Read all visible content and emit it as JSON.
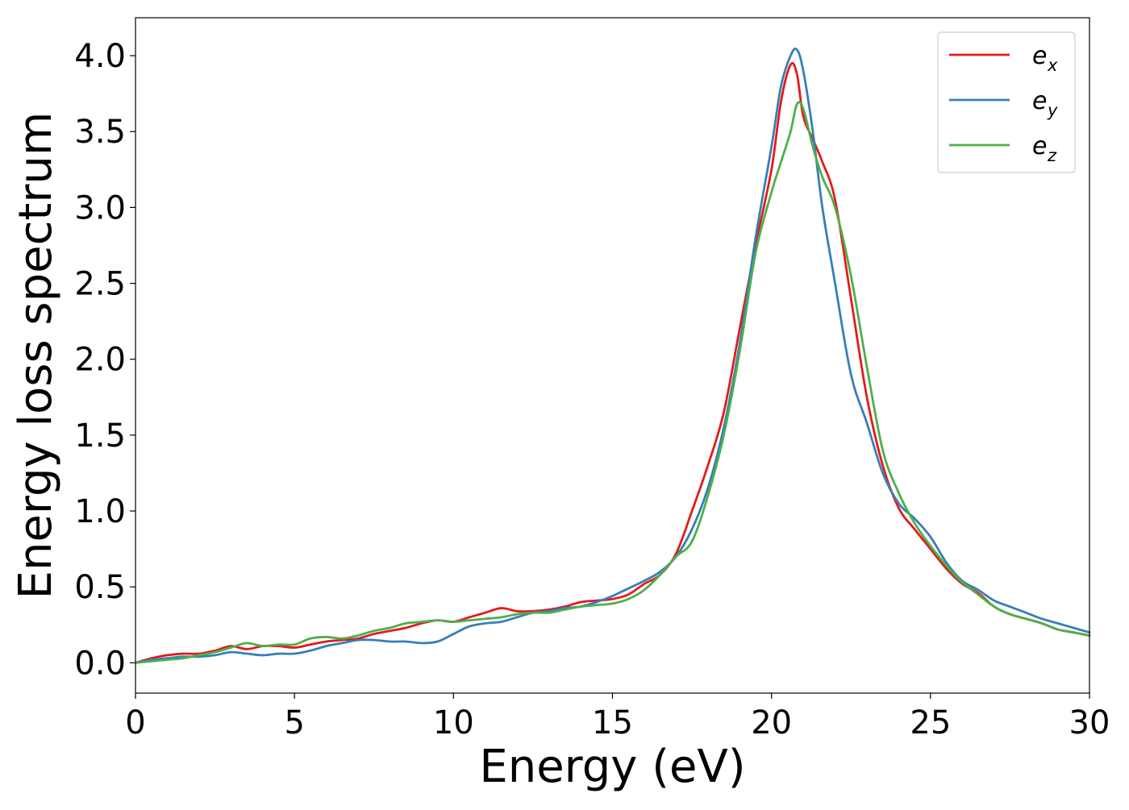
{
  "chart_data": {
    "type": "line",
    "title": "",
    "xlabel": "Energy (eV)",
    "ylabel": "Energy loss spectrum",
    "xlim": [
      0,
      30
    ],
    "ylim": [
      -0.2,
      4.25
    ],
    "xticks": [
      0,
      5,
      10,
      15,
      20,
      25,
      30
    ],
    "xtick_labels": [
      "0",
      "5",
      "10",
      "15",
      "20",
      "25",
      "30"
    ],
    "yticks": [
      0.0,
      0.5,
      1.0,
      1.5,
      2.0,
      2.5,
      3.0,
      3.5,
      4.0
    ],
    "ytick_labels": [
      "0.0",
      "0.5",
      "1.0",
      "1.5",
      "2.0",
      "2.5",
      "3.0",
      "3.5",
      "4.0"
    ],
    "grid": false,
    "legend_position": "top-right",
    "series": [
      {
        "name": "e_x",
        "label_base": "e",
        "label_sub": "x",
        "color": "#e41a1c",
        "x": [
          0,
          0.5,
          1,
          1.5,
          2,
          2.5,
          3,
          3.5,
          4,
          4.5,
          5,
          5.5,
          6,
          6.5,
          7,
          7.5,
          8,
          8.5,
          9,
          9.5,
          10,
          10.5,
          11,
          11.5,
          12,
          12.5,
          13,
          13.5,
          14,
          14.5,
          15,
          15.5,
          16,
          16.5,
          17,
          17.5,
          18,
          18.5,
          19,
          19.5,
          20,
          20.3,
          20.6,
          20.8,
          21,
          21.3,
          21.6,
          22,
          22.5,
          23,
          23.5,
          24,
          24.5,
          25,
          25.5,
          26,
          26.5,
          27,
          27.5,
          28,
          28.5,
          29,
          29.5,
          30
        ],
        "y": [
          0.0,
          0.03,
          0.05,
          0.06,
          0.06,
          0.08,
          0.11,
          0.09,
          0.11,
          0.11,
          0.1,
          0.12,
          0.14,
          0.15,
          0.16,
          0.19,
          0.21,
          0.23,
          0.26,
          0.28,
          0.27,
          0.3,
          0.33,
          0.36,
          0.34,
          0.34,
          0.35,
          0.37,
          0.4,
          0.41,
          0.42,
          0.45,
          0.52,
          0.58,
          0.72,
          1.0,
          1.3,
          1.65,
          2.2,
          2.75,
          3.25,
          3.7,
          3.94,
          3.88,
          3.6,
          3.45,
          3.3,
          3.05,
          2.4,
          1.75,
          1.3,
          1.02,
          0.88,
          0.75,
          0.62,
          0.52,
          0.46,
          0.37,
          0.32,
          0.29,
          0.26,
          0.22,
          0.2,
          0.18
        ]
      },
      {
        "name": "e_y",
        "label_base": "e",
        "label_sub": "y",
        "color": "#377eb8",
        "x": [
          0,
          0.5,
          1,
          1.5,
          2,
          2.5,
          3,
          3.5,
          4,
          4.5,
          5,
          5.5,
          6,
          6.5,
          7,
          7.5,
          8,
          8.5,
          9,
          9.5,
          10,
          10.5,
          11,
          11.5,
          12,
          12.5,
          13,
          13.5,
          14,
          14.5,
          15,
          15.5,
          16,
          16.5,
          17,
          17.5,
          18,
          18.5,
          19,
          19.5,
          20,
          20.3,
          20.6,
          20.8,
          21,
          21.3,
          21.6,
          22,
          22.5,
          23,
          23.5,
          24,
          24.5,
          25,
          25.5,
          26,
          26.5,
          27,
          27.5,
          28,
          28.5,
          29,
          29.5,
          30
        ],
        "y": [
          0.0,
          0.02,
          0.03,
          0.04,
          0.04,
          0.05,
          0.07,
          0.06,
          0.05,
          0.06,
          0.06,
          0.08,
          0.11,
          0.13,
          0.15,
          0.15,
          0.14,
          0.14,
          0.13,
          0.14,
          0.19,
          0.24,
          0.26,
          0.27,
          0.3,
          0.33,
          0.34,
          0.36,
          0.37,
          0.4,
          0.44,
          0.49,
          0.54,
          0.6,
          0.7,
          0.88,
          1.15,
          1.55,
          2.1,
          2.8,
          3.4,
          3.8,
          4.0,
          4.04,
          3.9,
          3.5,
          3.0,
          2.5,
          1.9,
          1.58,
          1.25,
          1.05,
          0.95,
          0.83,
          0.66,
          0.54,
          0.48,
          0.41,
          0.37,
          0.33,
          0.29,
          0.26,
          0.23,
          0.2
        ]
      },
      {
        "name": "e_z",
        "label_base": "e",
        "label_sub": "z",
        "color": "#4daf4a",
        "x": [
          0,
          0.5,
          1,
          1.5,
          2,
          2.5,
          3,
          3.5,
          4,
          4.5,
          5,
          5.5,
          6,
          6.5,
          7,
          7.5,
          8,
          8.5,
          9,
          9.5,
          10,
          10.5,
          11,
          11.5,
          12,
          12.5,
          13,
          13.5,
          14,
          14.5,
          15,
          15.5,
          16,
          16.5,
          17,
          17.5,
          18,
          18.5,
          19,
          19.5,
          20,
          20.3,
          20.6,
          20.8,
          21,
          21.3,
          21.6,
          22,
          22.5,
          23,
          23.5,
          24,
          24.5,
          25,
          25.5,
          26,
          26.5,
          27,
          27.5,
          28,
          28.5,
          29,
          29.5,
          30
        ],
        "y": [
          0.0,
          0.01,
          0.02,
          0.03,
          0.05,
          0.07,
          0.1,
          0.13,
          0.11,
          0.12,
          0.12,
          0.16,
          0.17,
          0.16,
          0.18,
          0.21,
          0.23,
          0.26,
          0.27,
          0.28,
          0.27,
          0.28,
          0.29,
          0.3,
          0.32,
          0.33,
          0.33,
          0.35,
          0.37,
          0.38,
          0.39,
          0.42,
          0.48,
          0.58,
          0.7,
          0.8,
          1.1,
          1.5,
          2.05,
          2.7,
          3.1,
          3.3,
          3.5,
          3.68,
          3.65,
          3.4,
          3.2,
          3.0,
          2.55,
          1.95,
          1.4,
          1.12,
          0.92,
          0.77,
          0.64,
          0.53,
          0.45,
          0.37,
          0.32,
          0.29,
          0.26,
          0.22,
          0.2,
          0.18
        ]
      }
    ]
  }
}
